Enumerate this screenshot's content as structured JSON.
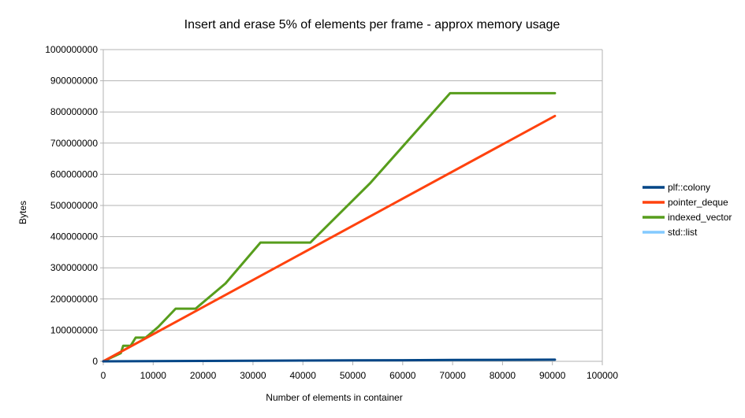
{
  "chart_data": {
    "type": "line",
    "title": "Insert and erase 5% of elements per frame - approx memory usage",
    "xlabel": "Number of elements in container",
    "ylabel": "Bytes",
    "xlim": [
      0,
      100000
    ],
    "ylim": [
      0,
      1000000000
    ],
    "x_ticks": [
      0,
      10000,
      20000,
      30000,
      40000,
      50000,
      60000,
      70000,
      80000,
      90000,
      100000
    ],
    "y_ticks": [
      0,
      100000000,
      200000000,
      300000000,
      400000000,
      500000000,
      600000000,
      700000000,
      800000000,
      900000000,
      1000000000
    ],
    "x_tick_labels": [
      "0",
      "10000",
      "20000",
      "30000",
      "40000",
      "50000",
      "60000",
      "70000",
      "80000",
      "90000",
      "100000"
    ],
    "y_tick_labels": [
      "0",
      "100000000",
      "200000000",
      "300000000",
      "400000000",
      "500000000",
      "600000000",
      "700000000",
      "800000000",
      "900000000",
      "1000000000"
    ],
    "grid": "horizontal",
    "legend_position": "right",
    "series": [
      {
        "name": "plf::colony",
        "color": "#004586",
        "points": [
          [
            0,
            0
          ],
          [
            10000,
            600000
          ],
          [
            20000,
            1200000
          ],
          [
            30000,
            1800000
          ],
          [
            40000,
            2400000
          ],
          [
            50000,
            3000000
          ],
          [
            60000,
            3600000
          ],
          [
            70000,
            4200000
          ],
          [
            80000,
            4800000
          ],
          [
            90500,
            5400000
          ]
        ]
      },
      {
        "name": "pointer_deque",
        "color": "#ff420e",
        "points": [
          [
            0,
            0
          ],
          [
            90500,
            787000000
          ]
        ]
      },
      {
        "name": "indexed_vector",
        "color": "#579d1c",
        "points": [
          [
            0,
            0
          ],
          [
            3500,
            26000000
          ],
          [
            4000,
            50000000
          ],
          [
            5500,
            50000000
          ],
          [
            6500,
            76000000
          ],
          [
            8500,
            76000000
          ],
          [
            11000,
            110000000
          ],
          [
            14500,
            169000000
          ],
          [
            18500,
            169000000
          ],
          [
            24500,
            250000000
          ],
          [
            31500,
            381000000
          ],
          [
            41500,
            381000000
          ],
          [
            53500,
            572000000
          ],
          [
            69500,
            860000000
          ],
          [
            90500,
            860000000
          ]
        ]
      },
      {
        "name": "std::list",
        "color": "#83caff",
        "points": []
      }
    ]
  }
}
